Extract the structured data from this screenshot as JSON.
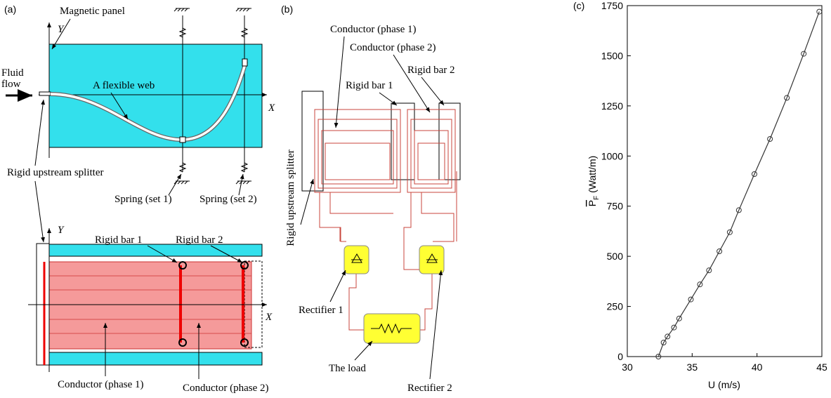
{
  "panel_a": {
    "label": "(a)",
    "y_axis_top": "Y",
    "x_axis_top": "X",
    "magnetic_panel": "Magnetic panel",
    "fluid_1": "Fluid",
    "fluid_2": "flow",
    "web": "A flexible web",
    "splitter": "Rigid upstream splitter",
    "spring_1": "Spring (set 1)",
    "spring_2": "Spring (set 2)",
    "y_axis_bottom": "Y",
    "x_axis_bottom": "X",
    "bar_1": "Rigid bar 1",
    "bar_2": "Rigid bar 2",
    "conductor_1": "Conductor (phase 1)",
    "conductor_2": "Conductor (phase 2)"
  },
  "panel_b": {
    "label": "(b)",
    "conductor_1": "Conductor (phase 1)",
    "conductor_2": "Conductor (phase 2)",
    "bar_2": "Rigid bar 2",
    "bar_1": "Rigid bar 1",
    "splitter": "Rigid upstream splitter",
    "rectifier_1": "Rectifier 1",
    "load": "The load",
    "rectifier_2": "Rectifier 2"
  },
  "chart_data": {
    "type": "line",
    "panel_label": "(c)",
    "x_label": "U (m/s)",
    "y_label_main": "P",
    "y_label_sub": "F",
    "y_label_unit": "(Watt/m)",
    "x": [
      32.4,
      32.8,
      33.1,
      33.6,
      34.0,
      34.9,
      35.6,
      36.3,
      37.1,
      37.9,
      38.6,
      39.8,
      41.0,
      42.3,
      43.6,
      44.8
    ],
    "values": [
      0,
      70,
      100,
      145,
      190,
      285,
      360,
      430,
      525,
      620,
      730,
      910,
      1085,
      1290,
      1510,
      1720
    ],
    "color": "#333333",
    "xlim": [
      30,
      45
    ],
    "xticks": [
      30,
      35,
      40,
      45
    ],
    "ylim": [
      0,
      1750
    ],
    "yticks": [
      0,
      250,
      500,
      750,
      1000,
      1250,
      1500,
      1750
    ]
  }
}
